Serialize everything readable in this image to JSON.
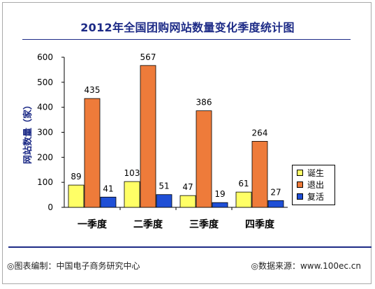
{
  "chart_data": {
    "type": "bar",
    "title": "2012年全国团购网站数量变化季度统计图",
    "ylabel": "网站数量（家）",
    "xlabel": "",
    "categories": [
      "一季度",
      "二季度",
      "三季度",
      "四季度"
    ],
    "series": [
      {
        "name": "诞生",
        "values": [
          89,
          103,
          47,
          61
        ],
        "color": "#ffff66"
      },
      {
        "name": "退出",
        "values": [
          435,
          567,
          386,
          264
        ],
        "color": "#ee7b3a"
      },
      {
        "name": "复活",
        "values": [
          41,
          51,
          19,
          27
        ],
        "color": "#1f4fd6"
      }
    ],
    "yticks": [
      "0",
      "100",
      "200",
      "300",
      "400",
      "500",
      "600"
    ],
    "ylim": [
      0,
      600
    ],
    "grid": false,
    "legend_position": "right"
  },
  "footer": {
    "source_left": "◎图表编制：中国电子商务研究中心",
    "source_right": "◎数据来源：www.100ec.cn"
  },
  "colors": {
    "title": "#1c2a86",
    "axis_label": "#1c2a86"
  }
}
